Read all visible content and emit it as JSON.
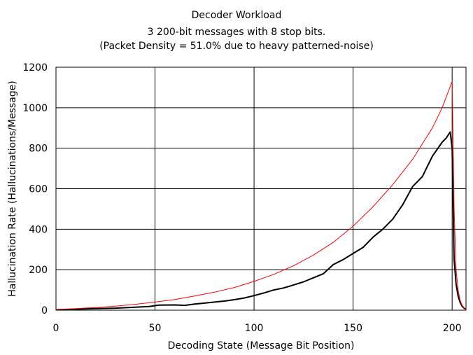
{
  "chart_data": {
    "type": "line",
    "title": "Decoder Workload",
    "subtitle_lines": [
      "3 200-bit messages with 8 stop bits.",
      "(Packet Density = 51.0% due to heavy patterned-noise)"
    ],
    "xlabel": "Decoding State (Message Bit Position)",
    "ylabel": "Hallucination Rate (Hallucinations/Message)",
    "xlim": [
      0,
      207
    ],
    "ylim": [
      0,
      1200
    ],
    "xticks": [
      0,
      50,
      100,
      150,
      200
    ],
    "yticks": [
      0,
      200,
      400,
      600,
      800,
      1000,
      1200
    ],
    "grid": true,
    "legend": "none",
    "series": [
      {
        "color": "#000000",
        "x": [
          0,
          10,
          20,
          30,
          40,
          47,
          52,
          60,
          65,
          70,
          75,
          80,
          85,
          90,
          95,
          100,
          105,
          110,
          115,
          120,
          125,
          130,
          135,
          140,
          145,
          150,
          155,
          160,
          165,
          170,
          175,
          180,
          185,
          190,
          195,
          197,
          199,
          200,
          201,
          202,
          203,
          204,
          205,
          206,
          207
        ],
        "y": [
          2,
          5,
          8,
          10,
          15,
          18,
          25,
          26,
          24,
          30,
          35,
          40,
          45,
          52,
          60,
          72,
          85,
          100,
          110,
          125,
          140,
          160,
          180,
          225,
          250,
          280,
          310,
          360,
          400,
          450,
          520,
          610,
          660,
          760,
          830,
          850,
          880,
          800,
          250,
          130,
          70,
          40,
          20,
          10,
          5
        ]
      },
      {
        "color": "#ff0000",
        "x": [
          0,
          10,
          20,
          30,
          40,
          50,
          60,
          70,
          80,
          90,
          100,
          110,
          120,
          130,
          140,
          150,
          160,
          170,
          180,
          190,
          195,
          200,
          201,
          202,
          203,
          204,
          205,
          206,
          207
        ],
        "y": [
          3,
          8,
          13,
          20,
          29,
          40,
          53,
          70,
          89,
          112,
          142,
          177,
          220,
          272,
          335,
          415,
          510,
          620,
          745,
          900,
          1000,
          1130,
          500,
          200,
          100,
          50,
          25,
          12,
          5
        ]
      }
    ]
  }
}
